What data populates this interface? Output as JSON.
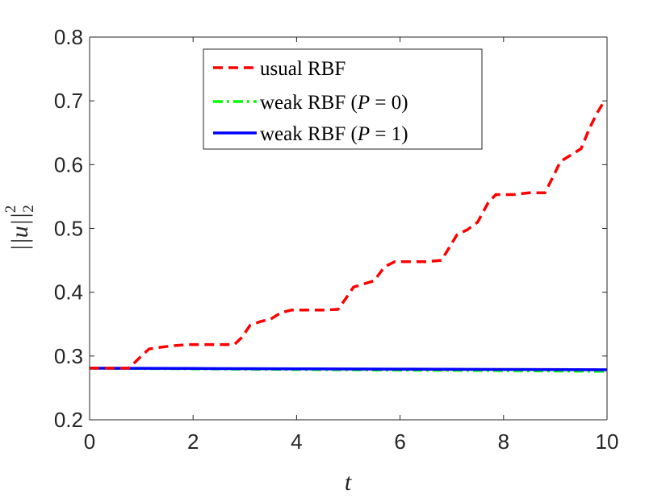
{
  "chart_data": {
    "type": "line",
    "xlabel": "t",
    "ylabel": "||u||",
    "ylabel_sub": "2",
    "ylabel_sup": "2",
    "xlim": [
      0,
      10
    ],
    "ylim": [
      0.2,
      0.8
    ],
    "xticks": [
      0,
      2,
      4,
      6,
      8,
      10
    ],
    "xtick_labels": [
      "0",
      "2",
      "4",
      "6",
      "8",
      "10"
    ],
    "yticks": [
      0.2,
      0.3,
      0.4,
      0.5,
      0.6,
      0.7,
      0.8
    ],
    "ytick_labels": [
      "0.2",
      "0.3",
      "0.4",
      "0.5",
      "0.6",
      "0.7",
      "0.8"
    ],
    "grid": false,
    "legend_position": "top-center",
    "series": [
      {
        "name": "usual RBF",
        "color": "#ff0000",
        "style": "dashed",
        "x": [
          0,
          0.5,
          0.75,
          0.85,
          1.0,
          1.15,
          1.3,
          1.6,
          1.9,
          2.2,
          2.5,
          2.8,
          2.95,
          3.1,
          3.3,
          3.5,
          3.7,
          3.9,
          4.2,
          4.5,
          4.8,
          4.95,
          5.1,
          5.3,
          5.5,
          5.7,
          5.9,
          6.2,
          6.5,
          6.8,
          6.95,
          7.1,
          7.3,
          7.5,
          7.7,
          7.85,
          8.2,
          8.5,
          8.8,
          8.95,
          9.1,
          9.3,
          9.5,
          9.65,
          9.8,
          9.95
        ],
        "y": [
          0.281,
          0.281,
          0.281,
          0.288,
          0.3,
          0.311,
          0.313,
          0.316,
          0.318,
          0.318,
          0.318,
          0.318,
          0.33,
          0.348,
          0.354,
          0.358,
          0.368,
          0.372,
          0.372,
          0.372,
          0.373,
          0.39,
          0.408,
          0.413,
          0.418,
          0.44,
          0.448,
          0.448,
          0.448,
          0.45,
          0.47,
          0.49,
          0.498,
          0.51,
          0.54,
          0.553,
          0.553,
          0.556,
          0.556,
          0.58,
          0.605,
          0.615,
          0.625,
          0.655,
          0.68,
          0.7
        ]
      },
      {
        "name": "weak RBF (P = 0)",
        "name_prefix": "weak RBF (",
        "name_var": "P",
        "name_suffix": " = 0)",
        "color": "#00ff00",
        "style": "dashdot",
        "x": [
          0,
          2,
          4,
          6,
          8,
          10
        ],
        "y": [
          0.281,
          0.28,
          0.279,
          0.278,
          0.277,
          0.276
        ]
      },
      {
        "name": "weak RBF (P = 1)",
        "name_prefix": "weak RBF (",
        "name_var": "P",
        "name_suffix": " = 1)",
        "color": "#0000ff",
        "style": "solid",
        "x": [
          0,
          2,
          4,
          6,
          8,
          10
        ],
        "y": [
          0.281,
          0.2805,
          0.28,
          0.2795,
          0.279,
          0.2785
        ]
      }
    ]
  }
}
